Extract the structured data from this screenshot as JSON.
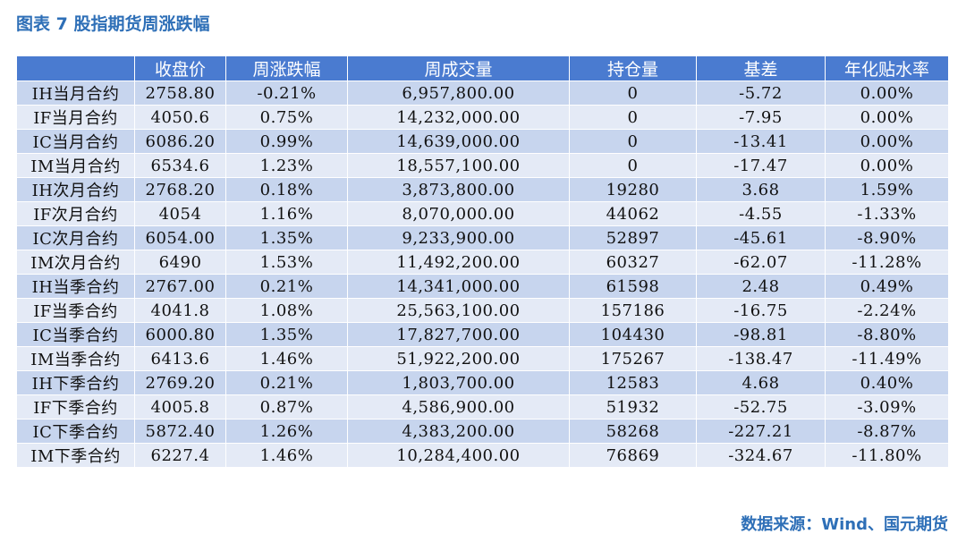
{
  "title": "图表 7  股指期货周涨跌幅",
  "columns": [
    "",
    "收盘价",
    "周涨跌幅",
    "周成交量",
    "持仓量",
    "基差",
    "年化贴水率"
  ],
  "rows": [
    [
      "IH当月合约",
      "2758.80",
      "-0.21%",
      "6,957,800.00",
      "0",
      "-5.72",
      "0.00%"
    ],
    [
      "IF当月合约",
      "4050.6",
      "0.75%",
      "14,232,000.00",
      "0",
      "-7.95",
      "0.00%"
    ],
    [
      "IC当月合约",
      "6086.20",
      "0.99%",
      "14,639,000.00",
      "0",
      "-13.41",
      "0.00%"
    ],
    [
      "IM当月合约",
      "6534.6",
      "1.23%",
      "18,557,100.00",
      "0",
      "-17.47",
      "0.00%"
    ],
    [
      "IH次月合约",
      "2768.20",
      "0.18%",
      "3,873,800.00",
      "19280",
      "3.68",
      "1.59%"
    ],
    [
      "IF次月合约",
      "4054",
      "1.16%",
      "8,070,000.00",
      "44062",
      "-4.55",
      "-1.33%"
    ],
    [
      "IC次月合约",
      "6054.00",
      "1.35%",
      "9,233,900.00",
      "52897",
      "-45.61",
      "-8.90%"
    ],
    [
      "IM次月合约",
      "6490",
      "1.53%",
      "11,492,200.00",
      "60327",
      "-62.07",
      "-11.28%"
    ],
    [
      "IH当季合约",
      "2767.00",
      "0.21%",
      "14,341,000.00",
      "61598",
      "2.48",
      "0.49%"
    ],
    [
      "IF当季合约",
      "4041.8",
      "1.08%",
      "25,563,100.00",
      "157186",
      "-16.75",
      "-2.24%"
    ],
    [
      "IC当季合约",
      "6000.80",
      "1.35%",
      "17,827,700.00",
      "104430",
      "-98.81",
      "-8.80%"
    ],
    [
      "IM当季合约",
      "6413.6",
      "1.46%",
      "51,922,200.00",
      "175267",
      "-138.47",
      "-11.49%"
    ],
    [
      "IH下季合约",
      "2769.20",
      "0.21%",
      "1,803,700.00",
      "12583",
      "4.68",
      "0.40%"
    ],
    [
      "IF下季合约",
      "4005.8",
      "0.87%",
      "4,586,900.00",
      "51932",
      "-52.75",
      "-3.09%"
    ],
    [
      "IC下季合约",
      "5872.40",
      "1.26%",
      "4,383,200.00",
      "58268",
      "-227.21",
      "-8.87%"
    ],
    [
      "IM下季合约",
      "6227.4",
      "1.46%",
      "10,284,400.00",
      "76869",
      "-324.67",
      "-11.80%"
    ]
  ],
  "source": "数据来源：Wind、国元期货",
  "colors": {
    "header": "#4A7BD0",
    "row_odd": "#C7D5EE",
    "row_even": "#E4EAF6",
    "title": "#2E6FB7"
  }
}
